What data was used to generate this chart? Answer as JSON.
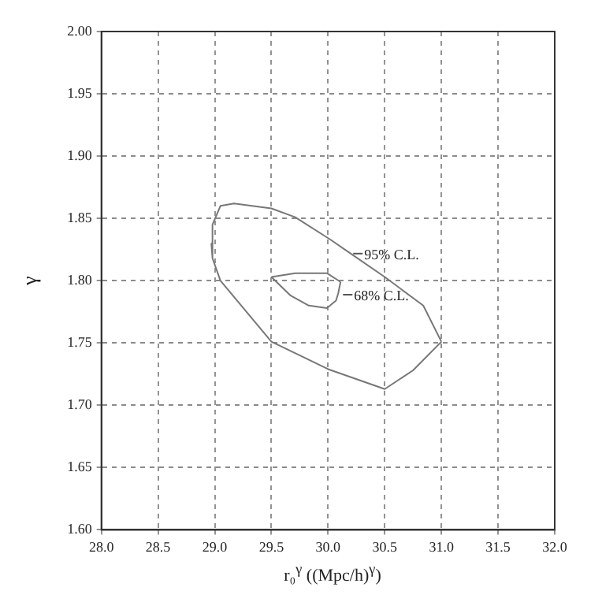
{
  "chart_data": {
    "type": "line",
    "xlabel": "r₀$^{γ}$ ((Mpc/h)$^{γ}$)",
    "ylabel": "γ",
    "series": [
      {
        "type": "line",
        "color": "#777777",
        "x": [
          28.97,
          28.98,
          29.05,
          29.17,
          29.5,
          29.71,
          30.02,
          30.18,
          30.5,
          30.84,
          31.0
        ],
        "values": [
          1.83,
          1.845,
          1.86,
          1.862,
          1.858,
          1.851,
          1.833,
          1.823,
          1.803,
          1.78,
          1.751
        ]
      },
      {
        "type": "line",
        "color": "#777777",
        "x": [
          28.97,
          28.98,
          29.05,
          29.5,
          30.0,
          30.5,
          30.75,
          31.0
        ],
        "values": [
          1.83,
          1.818,
          1.8,
          1.751,
          1.729,
          1.713,
          1.728,
          1.751
        ]
      },
      {
        "type": "line",
        "color": "#777777",
        "x": [
          29.5,
          29.71,
          29.99,
          30.11
        ],
        "values": [
          1.803,
          1.806,
          1.806,
          1.799
        ]
      },
      {
        "type": "line",
        "color": "#777777",
        "x": [
          29.5,
          29.67,
          29.83,
          29.99,
          30.07,
          30.09,
          30.11
        ],
        "values": [
          1.803,
          1.788,
          1.78,
          1.778,
          1.784,
          1.79,
          1.799
        ]
      }
    ],
    "annotations": [
      {
        "text": "95% C.L.",
        "x": 30.18,
        "y": 1.823
      },
      {
        "text": "68% C.L.",
        "x": 30.09,
        "y": 1.79
      }
    ],
    "xlim": [
      28,
      32
    ],
    "ylim": [
      1.6,
      2.0
    ],
    "xticks": [
      {
        "value": 28,
        "label": "28.0"
      },
      {
        "value": 28.5,
        "label": "28.5"
      },
      {
        "value": 29,
        "label": "29.0"
      },
      {
        "value": 29.5,
        "label": "29.5"
      },
      {
        "value": 30,
        "label": "30.0"
      },
      {
        "value": 30.5,
        "label": "30.5"
      },
      {
        "value": 31,
        "label": "31.0"
      },
      {
        "value": 31.5,
        "label": "31.5"
      },
      {
        "value": 32,
        "label": "32.0"
      }
    ],
    "yticks": [
      {
        "value": 1.6,
        "label": "1.60"
      },
      {
        "value": 1.65,
        "label": "1.65"
      },
      {
        "value": 1.7,
        "label": "1.70"
      },
      {
        "value": 1.75,
        "label": "1.75"
      },
      {
        "value": 1.8,
        "label": "1.80"
      },
      {
        "value": 1.85,
        "label": "1.85"
      },
      {
        "value": 1.9,
        "label": "1.90"
      },
      {
        "value": 1.95,
        "label": "1.95"
      },
      {
        "value": 2.0,
        "label": "2.00"
      }
    ],
    "grid": true,
    "legend": false,
    "marker": "none",
    "line_style": "solid"
  }
}
